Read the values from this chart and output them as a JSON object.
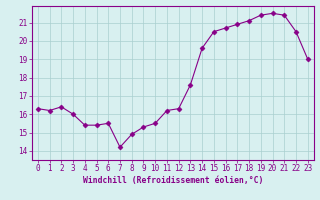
{
  "x": [
    0,
    1,
    2,
    3,
    4,
    5,
    6,
    7,
    8,
    9,
    10,
    11,
    12,
    13,
    14,
    15,
    16,
    17,
    18,
    19,
    20,
    21,
    22,
    23
  ],
  "y": [
    16.3,
    16.2,
    16.4,
    16.0,
    15.4,
    15.4,
    15.5,
    14.2,
    14.9,
    15.3,
    15.5,
    16.2,
    16.3,
    17.6,
    19.6,
    20.5,
    20.7,
    20.9,
    21.1,
    21.4,
    21.5,
    21.4,
    20.5,
    19.0
  ],
  "line_color": "#880088",
  "marker": "D",
  "marker_size": 2.5,
  "bg_color": "#d8f0f0",
  "grid_color": "#aacfcf",
  "xlabel": "Windchill (Refroidissement éolien,°C)",
  "ylabel": "",
  "xlim": [
    -0.5,
    23.5
  ],
  "ylim": [
    13.5,
    21.9
  ],
  "yticks": [
    14,
    15,
    16,
    17,
    18,
    19,
    20,
    21
  ],
  "xticks": [
    0,
    1,
    2,
    3,
    4,
    5,
    6,
    7,
    8,
    9,
    10,
    11,
    12,
    13,
    14,
    15,
    16,
    17,
    18,
    19,
    20,
    21,
    22,
    23
  ],
  "tick_color": "#880088",
  "label_color": "#880088",
  "spine_color": "#880088",
  "tick_labelsize": 5.5,
  "xlabel_fontsize": 5.8
}
